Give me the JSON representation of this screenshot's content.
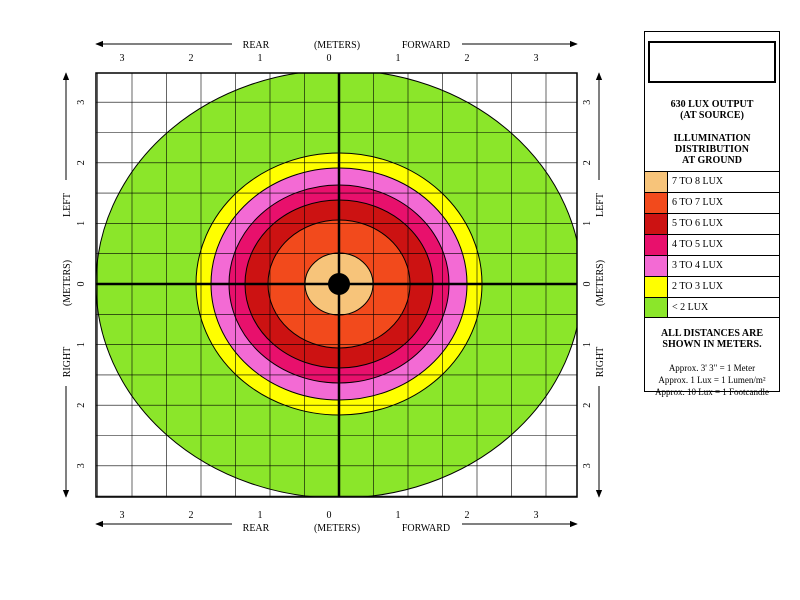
{
  "axis_top": {
    "rear": "REAR",
    "meters": "(METERS)",
    "forward": "FORWARD",
    "ticks": [
      "3",
      "2",
      "1",
      "0",
      "1",
      "2",
      "3"
    ]
  },
  "axis_bottom": {
    "rear": "REAR",
    "meters": "(METERS)",
    "forward": "FORWARD",
    "ticks": [
      "3",
      "2",
      "1",
      "0",
      "1",
      "2",
      "3"
    ]
  },
  "axis_left": {
    "left": "LEFT",
    "meters": "(METERS)",
    "right": "RIGHT",
    "ticks": [
      "3",
      "2",
      "1",
      "0",
      "1",
      "2",
      "3"
    ]
  },
  "axis_right": {
    "left": "LEFT",
    "meters": "(METERS)",
    "right": "RIGHT",
    "ticks": [
      "3",
      "2",
      "1",
      "0",
      "1",
      "2",
      "3"
    ]
  },
  "zones": [
    {
      "label": "7 TO 8 LUX",
      "color": "#F7C47A"
    },
    {
      "label": "6 TO 7 LUX",
      "color": "#F24A1C"
    },
    {
      "label": "5 TO 6 LUX",
      "color": "#CC1212"
    },
    {
      "label": "4 TO 5 LUX",
      "color": "#E8106C"
    },
    {
      "label": "3 TO 4 LUX",
      "color": "#F36AD4"
    },
    {
      "label": "2 TO 3 LUX",
      "color": "#FFFF00"
    },
    {
      "label": "< 2 LUX",
      "color": "#8BE62A"
    }
  ],
  "legend": {
    "output_line1": "630 LUX OUTPUT",
    "output_line2": "(AT SOURCE)",
    "distribution_line1": "ILLUMINATION",
    "distribution_line2": "DISTRIBUTION",
    "distribution_line3": "AT GROUND",
    "note_line1": "ALL DISTANCES ARE",
    "note_line2": "SHOWN IN METERS.",
    "conversion_1": "Approx. 3' 3\" = 1 Meter",
    "conversion_2": "Approx. 1 Lux = 1 Lumen/m²",
    "conversion_3": "Approx. 10 Lux = 1 Footcandle"
  }
}
